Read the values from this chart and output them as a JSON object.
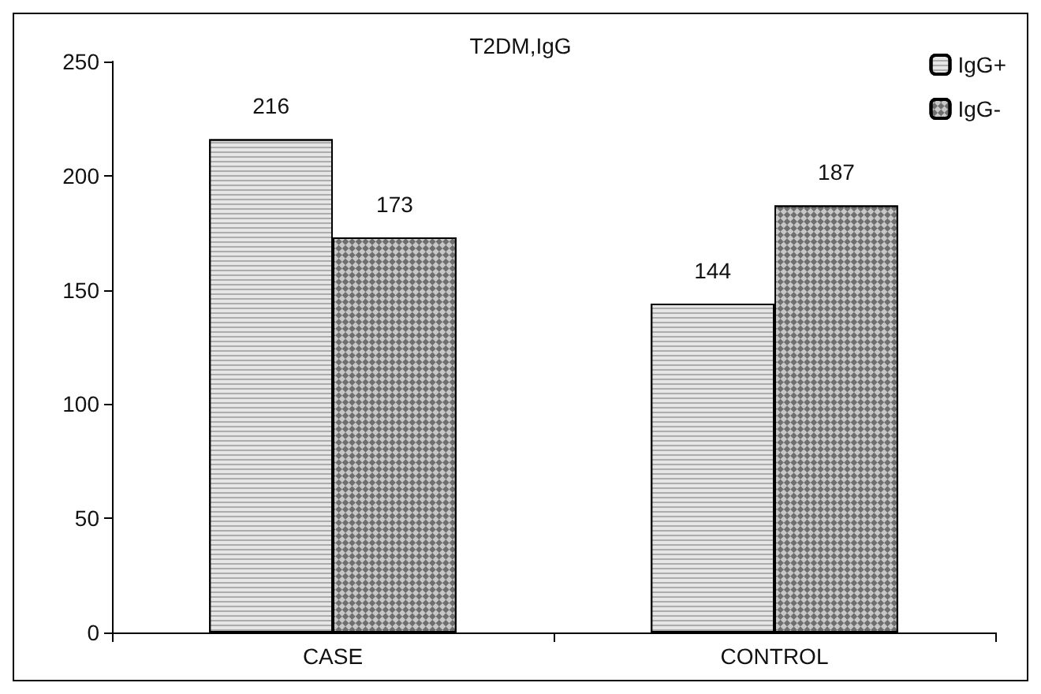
{
  "chart_data": {
    "type": "bar",
    "title": "T2DM,IgG",
    "categories": [
      "CASE",
      "CONTROL"
    ],
    "series": [
      {
        "name": "IgG+",
        "color": "#e6e6e6",
        "values": [
          216,
          144
        ]
      },
      {
        "name": "IgG-",
        "color": "#c8c8c8",
        "values": [
          173,
          187
        ]
      }
    ],
    "ylim": [
      0,
      250
    ],
    "yticks": [
      0,
      50,
      100,
      150,
      200,
      250
    ],
    "grid": false,
    "legend": "top right",
    "data_labels": true
  }
}
